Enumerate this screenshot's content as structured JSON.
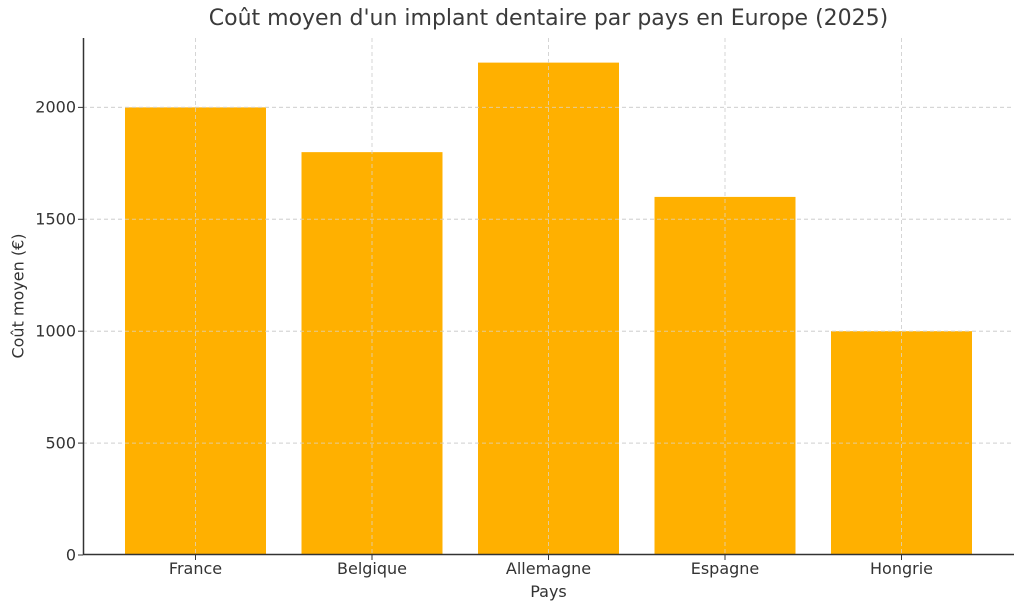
{
  "chart_data": {
    "type": "bar",
    "title": "Coût moyen d'un implant dentaire par pays en Europe (2025)",
    "xlabel": "Pays",
    "ylabel": "Coût moyen (€)",
    "categories": [
      "France",
      "Belgique",
      "Allemagne",
      "Espagne",
      "Hongrie"
    ],
    "values": [
      2000,
      1800,
      2200,
      1600,
      1000
    ],
    "ylim": [
      0,
      2310
    ],
    "yticks": [
      0,
      500,
      1000,
      1500,
      2000
    ],
    "grid": true,
    "legend": null,
    "bar_color": "#FFB000"
  },
  "colors": {
    "bar": "#FFB000",
    "grid": "#cccccc",
    "axis": "#333333",
    "text": "#333333"
  }
}
